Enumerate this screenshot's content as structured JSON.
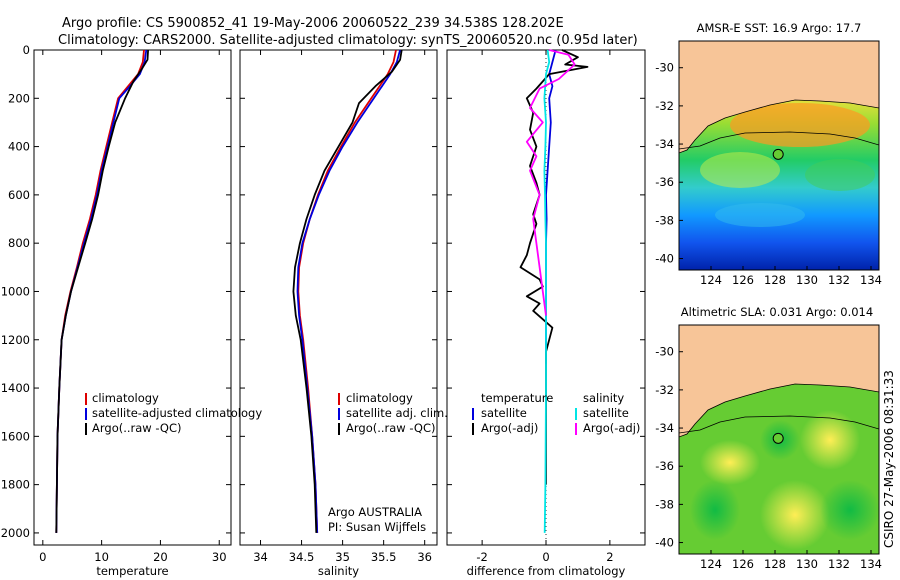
{
  "header": {
    "line1": "Argo profile: CS 5900852_41 19-May-2006 20060522_239 34.538S 128.202E",
    "line2": "Climatology: CARS2000. Satellite-adjusted climatology: synTS_20060520.nc (0.95d later)"
  },
  "footer_stamp": "CSIRO 27-May-2006 08:31:33",
  "colors": {
    "clim": "#dd0000",
    "sat": "#0000dd",
    "argo": "#000000",
    "sat_diff": "#00e5e5",
    "argo_adj": "#ff00ff"
  },
  "chart_data": [
    {
      "type": "line",
      "id": "temperature",
      "xlabel": "temperature",
      "ylabel": "",
      "xlim": [
        -1.5,
        32
      ],
      "ylim": [
        2050,
        0
      ],
      "xticks": [
        0,
        10,
        20,
        30
      ],
      "yticks": [
        0,
        200,
        400,
        600,
        800,
        1000,
        1200,
        1400,
        1600,
        1800,
        2000
      ],
      "legend": [
        "climatology",
        "satellite-adjusted climatology",
        "Argo(..raw -QC)"
      ],
      "series": [
        {
          "name": "climatology",
          "color_key": "clim",
          "x": [
            17.2,
            17.0,
            16.2,
            14.5,
            12.8,
            11.8,
            10.8,
            9.8,
            9.0,
            8.0,
            6.8,
            5.8,
            4.7,
            3.8,
            3.2,
            2.8,
            2.5,
            2.4,
            2.3
          ],
          "y": [
            0,
            50,
            100,
            150,
            200,
            300,
            400,
            500,
            600,
            700,
            800,
            900,
            1000,
            1100,
            1200,
            1400,
            1600,
            1800,
            2000
          ]
        },
        {
          "name": "satellite",
          "color_key": "sat",
          "x": [
            17.6,
            17.3,
            16.5,
            14.8,
            13.0,
            12.0,
            11.0,
            10.0,
            9.2,
            8.2,
            7.0,
            5.9,
            4.8,
            3.9,
            3.2,
            2.8,
            2.5,
            2.4,
            2.3
          ],
          "y": [
            0,
            50,
            100,
            150,
            200,
            300,
            400,
            500,
            600,
            700,
            800,
            900,
            1000,
            1100,
            1200,
            1400,
            1600,
            1800,
            2000
          ]
        },
        {
          "name": "argo",
          "color_key": "argo",
          "x": [
            17.9,
            17.8,
            16.8,
            15.4,
            14.0,
            12.3,
            11.2,
            10.2,
            9.4,
            8.4,
            7.2,
            6.0,
            4.8,
            3.9,
            3.2,
            2.8,
            2.5,
            2.4,
            2.3
          ],
          "y": [
            0,
            40,
            80,
            130,
            200,
            300,
            400,
            500,
            600,
            700,
            800,
            900,
            1000,
            1100,
            1200,
            1400,
            1600,
            1800,
            2000
          ]
        }
      ]
    },
    {
      "type": "line",
      "id": "salinity",
      "xlabel": "salinity",
      "ylabel": "",
      "xlim": [
        33.75,
        36.15
      ],
      "ylim": [
        2050,
        0
      ],
      "xticks": [
        34,
        34.5,
        35,
        35.5,
        36
      ],
      "yticks": [
        0,
        200,
        400,
        600,
        800,
        1000,
        1200,
        1400,
        1600,
        1800,
        2000
      ],
      "legend": [
        "climatology",
        "satellite adj. clim.",
        "Argo(..raw -QC)"
      ],
      "annotation": [
        "Argo AUSTRALIA",
        "PI: Susan Wijffels"
      ],
      "series": [
        {
          "name": "climatology",
          "color_key": "clim",
          "x": [
            35.65,
            35.62,
            35.55,
            35.45,
            35.35,
            35.15,
            34.98,
            34.82,
            34.7,
            34.6,
            34.52,
            34.47,
            34.46,
            34.48,
            34.52,
            34.58,
            34.63,
            34.67,
            34.69
          ],
          "y": [
            0,
            50,
            100,
            150,
            200,
            300,
            400,
            500,
            600,
            700,
            800,
            900,
            1000,
            1100,
            1200,
            1400,
            1600,
            1800,
            2000
          ]
        },
        {
          "name": "satellite",
          "color_key": "sat",
          "x": [
            35.7,
            35.66,
            35.58,
            35.48,
            35.38,
            35.18,
            35.0,
            34.84,
            34.71,
            34.6,
            34.51,
            34.46,
            34.45,
            34.47,
            34.51,
            34.57,
            34.63,
            34.67,
            34.69
          ],
          "y": [
            0,
            50,
            100,
            150,
            200,
            300,
            400,
            500,
            600,
            700,
            800,
            900,
            1000,
            1100,
            1200,
            1400,
            1600,
            1800,
            2000
          ]
        },
        {
          "name": "argo",
          "color_key": "argo",
          "x": [
            35.72,
            35.7,
            35.6,
            35.4,
            35.2,
            35.12,
            34.95,
            34.78,
            34.66,
            34.56,
            34.48,
            34.42,
            34.4,
            34.43,
            34.49,
            34.56,
            34.62,
            34.66,
            34.68
          ],
          "y": [
            0,
            40,
            90,
            150,
            220,
            300,
            400,
            500,
            600,
            700,
            800,
            900,
            1000,
            1100,
            1200,
            1400,
            1600,
            1800,
            2000
          ]
        }
      ]
    },
    {
      "type": "line",
      "id": "difference",
      "xlabel": "difference from climatology",
      "ylabel": "",
      "xlim": [
        -3.1,
        3.1
      ],
      "ylim": [
        2050,
        0
      ],
      "xticks": [
        -2,
        0,
        2
      ],
      "yticks": [
        0,
        200,
        400,
        600,
        800,
        1000,
        1200,
        1400,
        1600,
        1800,
        2000
      ],
      "legend_left_header": "temperature",
      "legend_right_header": "salinity",
      "legend_left": [
        "satellite",
        "Argo(-adj)"
      ],
      "legend_right": [
        "satellite",
        "Argo(-adj)"
      ],
      "series": [
        {
          "name": "temperature satellite",
          "color_key": "sat",
          "x": [
            0.3,
            0.2,
            0.1,
            0.2,
            0.1,
            0.15,
            0.1,
            0.05,
            0.0,
            0.02,
            0.0,
            0.0,
            0.0,
            0.0
          ],
          "y": [
            0,
            50,
            100,
            150,
            200,
            300,
            400,
            500,
            600,
            700,
            800,
            1000,
            1200,
            1300
          ]
        },
        {
          "name": "temperature argo",
          "color_key": "argo",
          "x": [
            0.5,
            1.0,
            0.6,
            1.3,
            0.1,
            -0.3,
            -0.6,
            -0.4,
            -0.5,
            -0.3,
            -0.5,
            -0.3,
            -0.2,
            -0.4,
            -0.3,
            -0.5,
            -0.6,
            -0.8,
            -0.2,
            -0.1,
            -0.6,
            -0.2,
            -0.4,
            0.2,
            0.0,
            0.0,
            0.0
          ],
          "y": [
            0,
            30,
            60,
            70,
            100,
            160,
            200,
            260,
            330,
            400,
            480,
            550,
            600,
            680,
            720,
            800,
            850,
            900,
            950,
            980,
            1020,
            1050,
            1080,
            1150,
            1250,
            1500,
            1800
          ]
        },
        {
          "name": "salinity satellite",
          "color_key": "sat_diff",
          "x": [
            0.05,
            0.1,
            0.0,
            -0.05,
            0.0,
            -0.02,
            -0.05,
            -0.03,
            -0.02,
            0.0,
            0.0,
            0.0,
            -0.02,
            -0.04
          ],
          "y": [
            0,
            50,
            100,
            200,
            300,
            400,
            500,
            600,
            700,
            800,
            1000,
            1400,
            1800,
            2000
          ]
        },
        {
          "name": "salinity argo",
          "color_key": "argo_adj",
          "x": [
            0.1,
            0.7,
            0.9,
            0.4,
            -0.2,
            -0.5,
            -0.1,
            -0.6,
            -0.3,
            -0.5,
            -0.2,
            -0.4,
            -0.3,
            -0.2,
            -0.1,
            0.0
          ],
          "y": [
            0,
            20,
            60,
            120,
            160,
            240,
            300,
            380,
            440,
            500,
            600,
            700,
            800,
            900,
            1000,
            1100
          ]
        }
      ]
    },
    {
      "type": "heatmap",
      "id": "sst_map",
      "title": "AMSR-E SST: 16.9 Argo: 17.7",
      "xlim": [
        122,
        134.5
      ],
      "ylim": [
        -40.6,
        -28.6
      ],
      "xticks": [
        124,
        126,
        128,
        130,
        132,
        134
      ],
      "yticks": [
        -30,
        -32,
        -34,
        -36,
        -38,
        -40
      ],
      "marker": {
        "lon": 128.2,
        "lat": -34.54
      }
    },
    {
      "type": "heatmap",
      "id": "sla_map",
      "title": "Altimetric SLA: 0.031 Argo: 0.014",
      "xlim": [
        122,
        134.5
      ],
      "ylim": [
        -40.6,
        -28.6
      ],
      "xticks": [
        124,
        126,
        128,
        130,
        132,
        134
      ],
      "yticks": [
        -30,
        -32,
        -34,
        -36,
        -38,
        -40
      ],
      "marker": {
        "lon": 128.2,
        "lat": -34.54
      }
    }
  ]
}
